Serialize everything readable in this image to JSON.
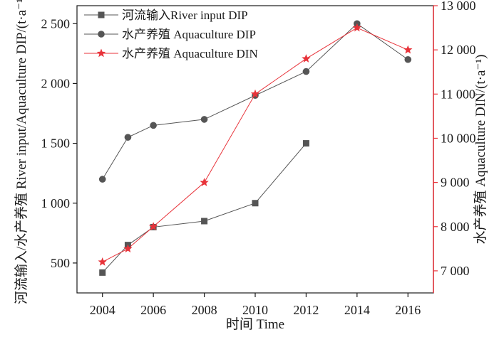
{
  "chart_data": {
    "type": "line",
    "xlabel": "时间 Time",
    "ylabel_left": "河流输入/水产养殖 River input/Aquaculture DIP/(t·a⁻¹)",
    "ylabel_right": "水产养殖 Aquaculture DIN/(t·a⁻¹)",
    "xlim": [
      2003,
      2017
    ],
    "ylim_left": [
      250,
      2650
    ],
    "ylim_right": [
      6500,
      13000
    ],
    "x_ticks": [
      2004,
      2006,
      2008,
      2010,
      2012,
      2014,
      2016
    ],
    "x_tick_labels": [
      "2004",
      "2006",
      "2008",
      "2010",
      "2012",
      "2014",
      "2016"
    ],
    "y_left_ticks": [
      500,
      1000,
      1500,
      2000,
      2500
    ],
    "y_left_tick_labels": [
      "500",
      "1 000",
      "1 500",
      "2 000",
      "2 500"
    ],
    "y_right_ticks": [
      7000,
      8000,
      9000,
      10000,
      11000,
      12000,
      13000
    ],
    "y_right_tick_labels": [
      "7 000",
      "8 000",
      "9 000",
      "10 000",
      "11 000",
      "12 000",
      "13 000"
    ],
    "grid": false,
    "legend_position": "top-left",
    "series": [
      {
        "name": "河流输入River input DIP",
        "axis": "left",
        "marker": "square",
        "color": "#555555",
        "x": [
          2004,
          2005,
          2006,
          2008,
          2010,
          2012
        ],
        "y": [
          420,
          650,
          800,
          850,
          1000,
          1500
        ]
      },
      {
        "name": "水产养殖 Aquaculture DIP",
        "axis": "left",
        "marker": "circle",
        "color": "#555555",
        "x": [
          2004,
          2005,
          2006,
          2008,
          2010,
          2012,
          2014,
          2016
        ],
        "y": [
          1200,
          1550,
          1650,
          1700,
          1900,
          2100,
          2500,
          2200
        ]
      },
      {
        "name": "水产养殖 Aquaculture DIN",
        "axis": "right",
        "marker": "star",
        "color": "#e8333a",
        "x": [
          2004,
          2005,
          2006,
          2008,
          2010,
          2012,
          2014,
          2016
        ],
        "y": [
          7200,
          7500,
          8000,
          9000,
          11000,
          11800,
          12500,
          12000
        ]
      }
    ],
    "colors": {
      "axis": "#1a1a1a",
      "right_axis": "#e8333a",
      "series_dark": "#555555",
      "series_red": "#e8333a"
    }
  }
}
